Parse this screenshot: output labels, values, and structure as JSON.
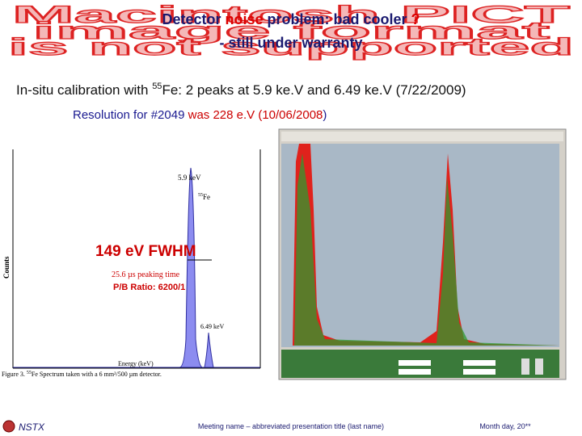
{
  "watermark": [
    "Macintosh PICT",
    "image format",
    "is not supported"
  ],
  "title": {
    "parts": [
      "Detector ",
      "noise",
      " problem: bad cooler ",
      "?"
    ],
    "subtitle": "- still under warranty"
  },
  "calibration": {
    "before": "In-situ calibration with ",
    "mass": "55",
    "after": "Fe: 2 peaks at 5.9 ke.V and 6.49 ke.V (7/22/2009)"
  },
  "resolution": {
    "parts": [
      "Resolution for #2049 ",
      "was 228 e.V (10/06/2008",
      ")"
    ]
  },
  "figure": {
    "peak1": "5.9 keV",
    "isotope_mass": "55",
    "isotope": "Fe",
    "fwhm": "149 eV FWHM",
    "peaking": "25.6 µs peaking time",
    "pb_ratio": "P/B Ratio: 6200/1",
    "peak2": "6.49 keV",
    "y_label": "Counts",
    "x_label": "Energy (keV)",
    "caption_before": "Figure 3. ",
    "caption_mass": "55",
    "caption_after": "Fe Spectrum taken with a 6 mm²/500 µm detector."
  },
  "footer": {
    "org": "NSTX",
    "meeting": "Meeting name – abbreviated presentation title (last name)",
    "date": "Month day, 20**"
  }
}
